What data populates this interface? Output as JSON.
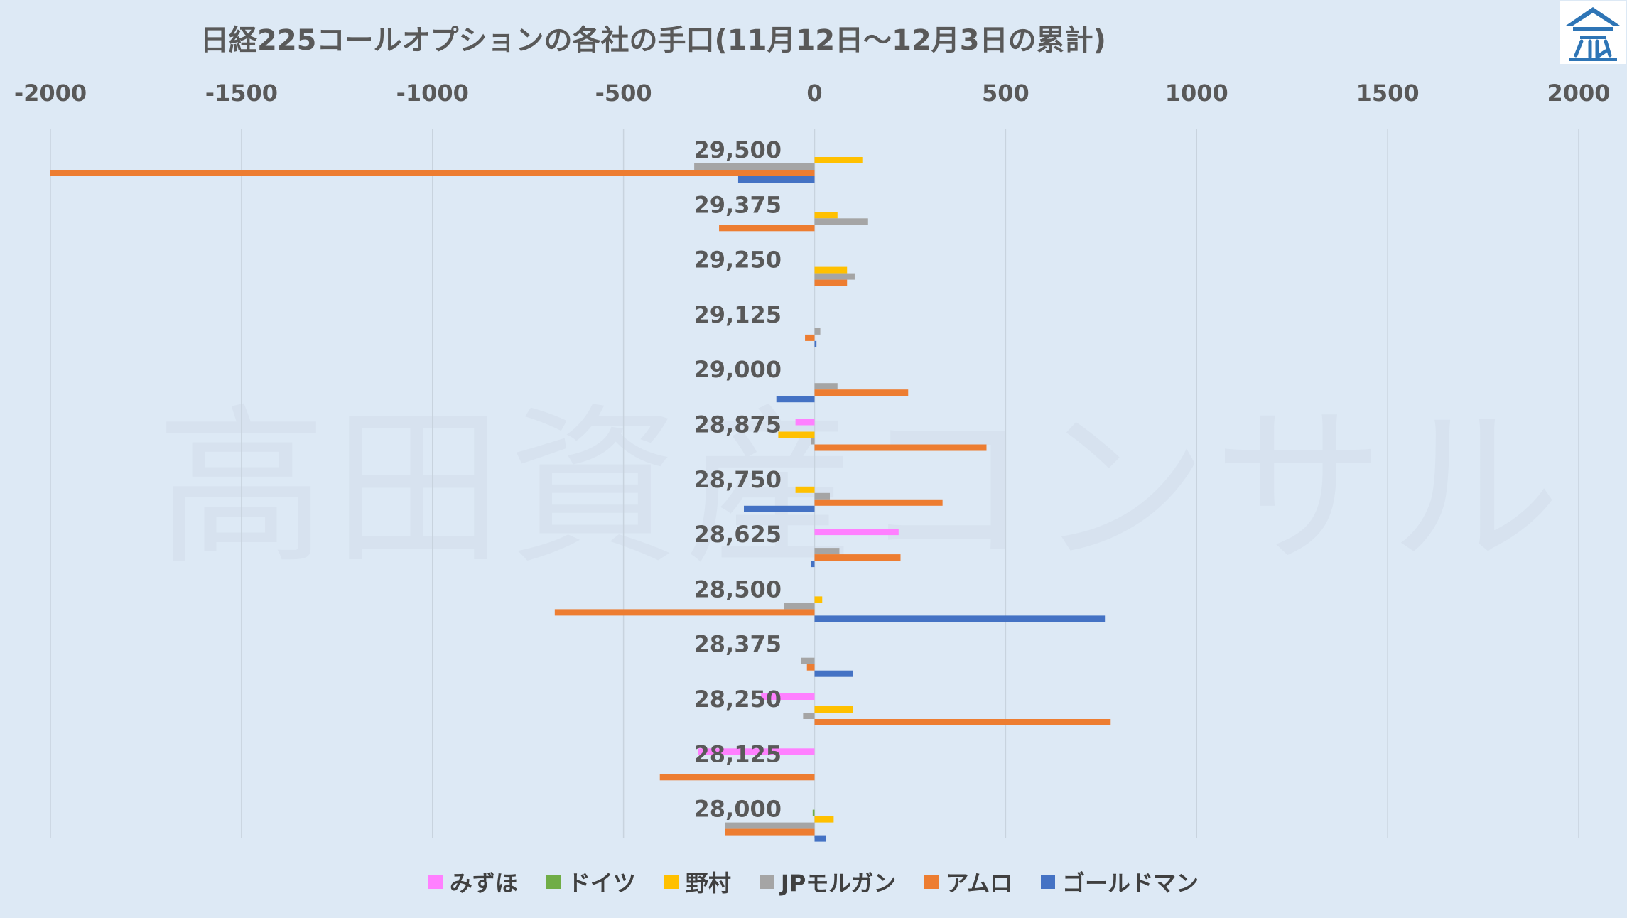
{
  "chart_data": {
    "type": "bar",
    "orientation": "horizontal",
    "title": "日経225コールオプションの各社の手口(11月12日～12月3日の累計)",
    "xlim": [
      -2000,
      2000
    ],
    "xticks": [
      "-2000",
      "-1500",
      "-1000",
      "-500",
      "0",
      "500",
      "1000",
      "1500",
      "2000"
    ],
    "xtick_values": [
      -2000,
      -1500,
      -1000,
      -500,
      0,
      500,
      1000,
      1500,
      2000
    ],
    "categories": [
      "29,500",
      "29,375",
      "29,250",
      "29,125",
      "29,000",
      "28,875",
      "28,750",
      "28,625",
      "28,500",
      "28,375",
      "28,250",
      "28,125",
      "28,000"
    ],
    "series": [
      {
        "name": "みずほ",
        "color": "#ff80ff",
        "values": [
          0,
          0,
          0,
          0,
          0,
          -50,
          0,
          220,
          0,
          0,
          -140,
          -305,
          0
        ]
      },
      {
        "name": "ドイツ",
        "color": "#70ad47",
        "values": [
          0,
          0,
          0,
          0,
          0,
          0,
          0,
          0,
          0,
          0,
          0,
          0,
          -5
        ]
      },
      {
        "name": "野村",
        "color": "#ffc000",
        "values": [
          125,
          60,
          85,
          0,
          0,
          -95,
          -50,
          0,
          20,
          0,
          100,
          0,
          50
        ]
      },
      {
        "name": "JPモルガン",
        "color": "#a5a5a5",
        "values": [
          -315,
          140,
          105,
          15,
          60,
          -10,
          40,
          65,
          -80,
          -35,
          -30,
          0,
          -235
        ]
      },
      {
        "name": "アムロ",
        "color": "#ed7d31",
        "values": [
          -2000,
          -250,
          85,
          -25,
          245,
          450,
          335,
          225,
          -680,
          -20,
          775,
          -405,
          -235
        ]
      },
      {
        "name": "ゴールドマン",
        "color": "#4472c4",
        "values": [
          -200,
          0,
          0,
          5,
          -100,
          0,
          -185,
          -10,
          760,
          100,
          0,
          0,
          30
        ]
      }
    ],
    "legend_position": "bottom",
    "grid": "vertical"
  },
  "logo": {
    "name": "takada-logo-icon",
    "color": "#2e75b6"
  },
  "watermark": "高田資産コンサル"
}
